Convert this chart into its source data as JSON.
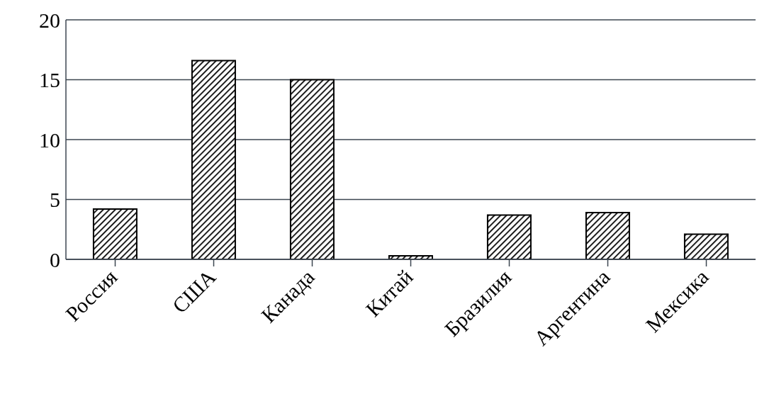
{
  "chart_data": {
    "type": "bar",
    "categories": [
      "Россия",
      "США",
      "Канада",
      "Китай",
      "Бразилия",
      "Аргентина",
      "Мексика"
    ],
    "values": [
      4.2,
      16.6,
      15.0,
      0.3,
      3.7,
      3.9,
      2.1
    ],
    "color": "#000000",
    "ylim": [
      0,
      20
    ],
    "yticks": [
      0,
      5,
      10,
      15,
      20
    ],
    "grid": "y"
  }
}
